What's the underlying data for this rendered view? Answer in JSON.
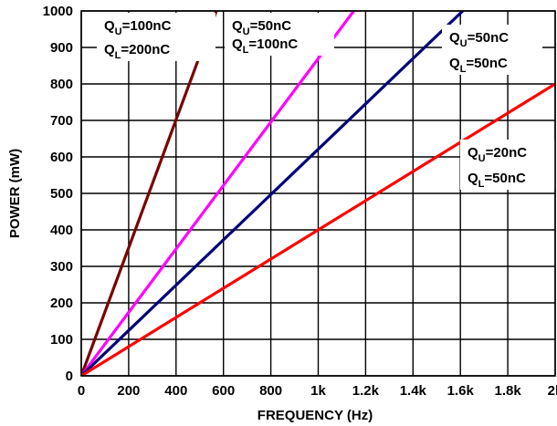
{
  "chart_data": {
    "type": "line",
    "title": "",
    "xlabel": "FREQUENCY (Hz)",
    "ylabel": "POWER (mW)",
    "xlim": [
      0,
      2000
    ],
    "ylim": [
      0,
      1000
    ],
    "grid": true,
    "x_ticks": [
      0,
      200,
      400,
      600,
      800,
      1000,
      1200,
      1400,
      1600,
      1800,
      2000
    ],
    "x_tick_labels": [
      "0",
      "200",
      "400",
      "600",
      "800",
      "1k",
      "1.2k",
      "1.4k",
      "1.6k",
      "1.8k",
      "2k"
    ],
    "y_ticks": [
      0,
      100,
      200,
      300,
      400,
      500,
      600,
      700,
      800,
      900,
      1000
    ],
    "y_tick_labels": [
      "0",
      "100",
      "200",
      "300",
      "400",
      "500",
      "600",
      "700",
      "800",
      "900",
      "1000"
    ],
    "series": [
      {
        "color": "#7a0000",
        "x": [
          0,
          570
        ],
        "y": [
          0,
          1000
        ]
      },
      {
        "color": "#ff00ff",
        "x": [
          0,
          1150
        ],
        "y": [
          0,
          1000
        ]
      },
      {
        "color": "#00007a",
        "x": [
          0,
          1610
        ],
        "y": [
          0,
          1000
        ]
      },
      {
        "color": "#ff0000",
        "x": [
          0,
          2000
        ],
        "y": [
          0,
          800
        ]
      }
    ],
    "annotations": [
      {
        "q": "Q",
        "u_sub": "U",
        "u_val": "=100nC",
        "l_sub": "L",
        "l_val": "=200nC"
      },
      {
        "q": "Q",
        "u_sub": "U",
        "u_val": "=50nC",
        "l_sub": "L",
        "l_val": "=100nC"
      },
      {
        "q": "Q",
        "u_sub": "U",
        "u_val": "=50nC",
        "l_sub": "L",
        "l_val": "=50nC"
      },
      {
        "q": "Q",
        "u_sub": "U",
        "u_val": "=20nC",
        "l_sub": "L",
        "l_val": "=50nC"
      }
    ]
  }
}
